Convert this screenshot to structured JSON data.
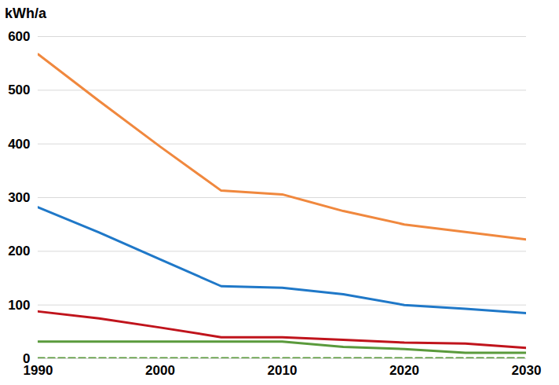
{
  "chart_data": {
    "type": "line",
    "ylabel": "kWh/a",
    "x": [
      1990,
      1995,
      2000,
      2005,
      2010,
      2015,
      2020,
      2025,
      2030
    ],
    "xlim": [
      1990,
      2030
    ],
    "xticks": [
      1990,
      2000,
      2010,
      2020,
      2030
    ],
    "ylim": [
      0,
      600
    ],
    "yticks": [
      0,
      100,
      200,
      300,
      400,
      500,
      600
    ],
    "grid": true,
    "series": [
      {
        "color": "#f0883e",
        "line_style": "solid",
        "values": [
          567,
          480,
          395,
          313,
          306,
          275,
          250,
          236,
          222
        ]
      },
      {
        "color": "#1f78c8",
        "line_style": "solid",
        "values": [
          282,
          235,
          185,
          135,
          132,
          120,
          100,
          93,
          85
        ]
      },
      {
        "color": "#c0141c",
        "line_style": "solid",
        "values": [
          88,
          75,
          58,
          40,
          40,
          35,
          30,
          28,
          20
        ]
      },
      {
        "color": "#5a9a3c",
        "line_style": "solid",
        "values": [
          32,
          32,
          32,
          32,
          32,
          22,
          18,
          11,
          11
        ]
      },
      {
        "color": "#5a9a3c",
        "line_style": "dashed",
        "values": [
          1,
          1,
          1,
          1,
          1,
          1,
          1,
          1,
          1
        ]
      }
    ]
  }
}
